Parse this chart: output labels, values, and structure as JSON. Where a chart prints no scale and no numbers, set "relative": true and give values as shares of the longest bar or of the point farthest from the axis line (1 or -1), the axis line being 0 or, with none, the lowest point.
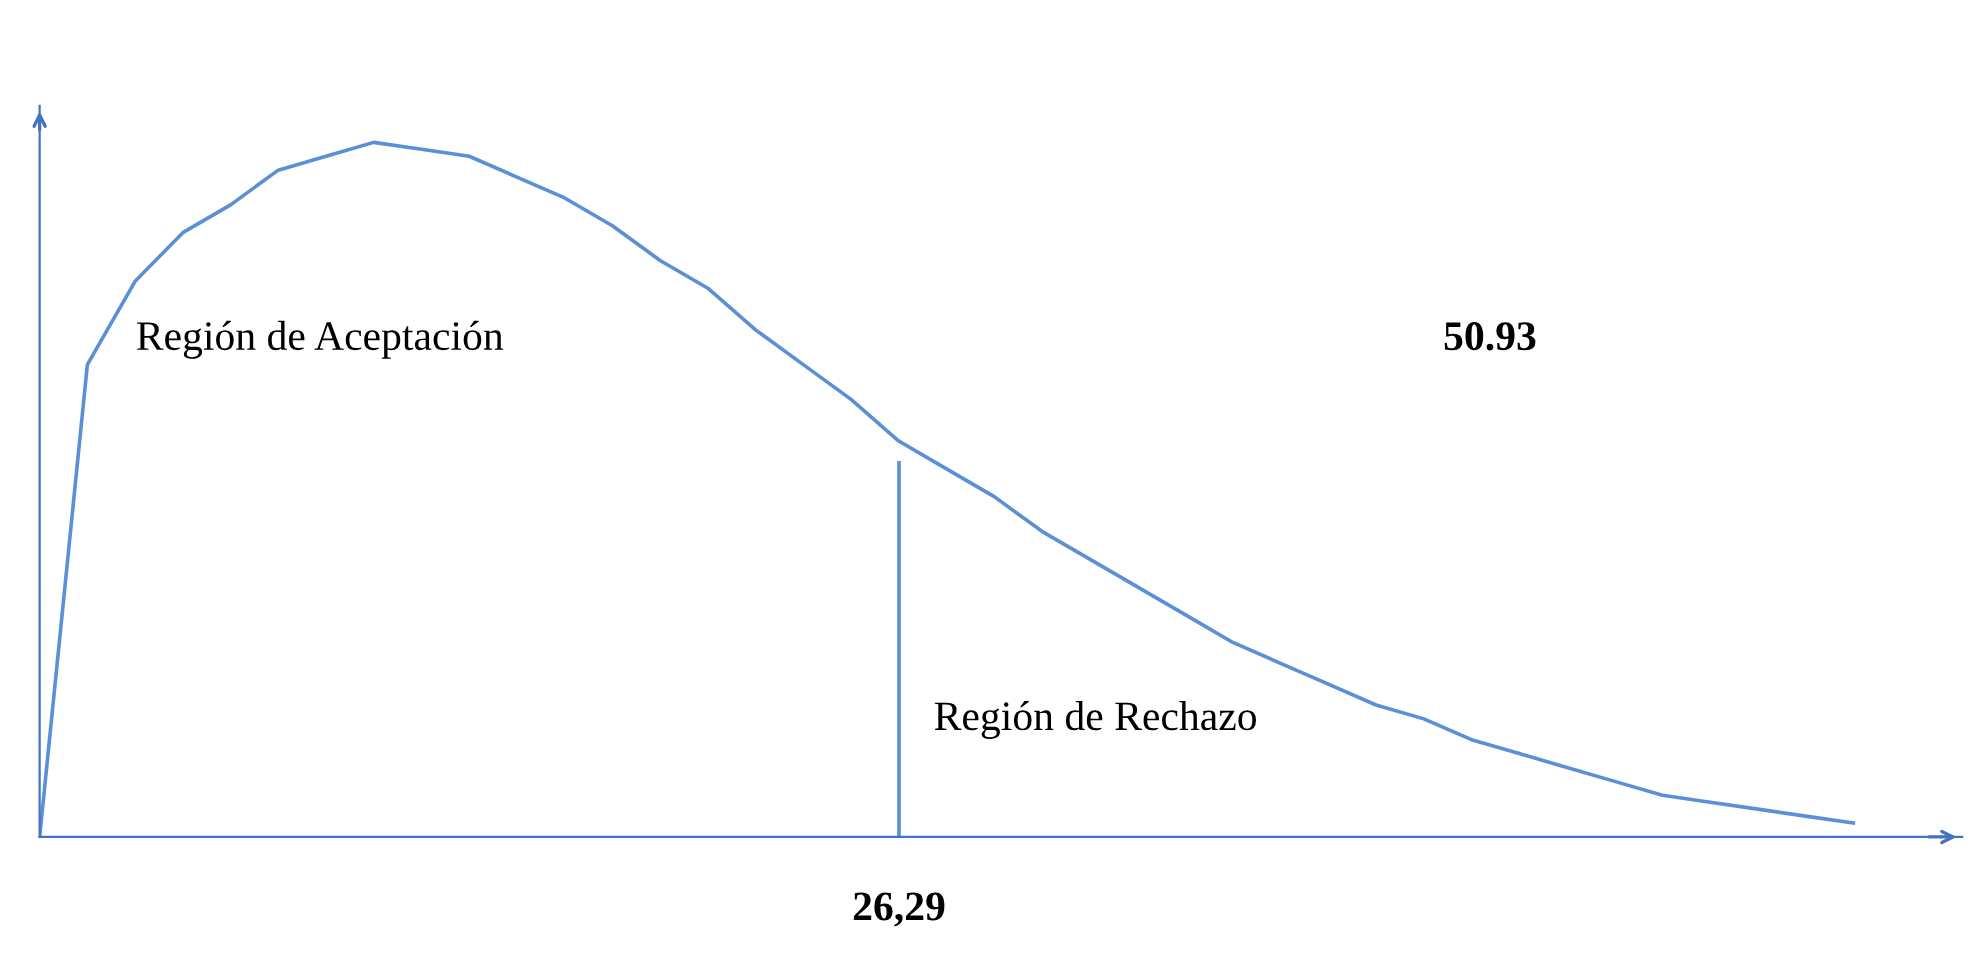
{
  "chart_data": {
    "type": "line",
    "relative": true,
    "color": "#5b8fd6",
    "categories": [
      null,
      null,
      null,
      null,
      null,
      null,
      null,
      null,
      null,
      null,
      null,
      null,
      null,
      null,
      null,
      null,
      null,
      null,
      null,
      null,
      null,
      null,
      null,
      null,
      null,
      null,
      null,
      null,
      null,
      null,
      null,
      null,
      null,
      null,
      null,
      null,
      null,
      null,
      null
    ],
    "values": [
      0,
      0.68,
      0.8,
      0.87,
      0.91,
      0.96,
      0.98,
      1.0,
      0.99,
      0.98,
      0.95,
      0.92,
      0.88,
      0.83,
      0.79,
      0.73,
      0.68,
      0.63,
      0.57,
      0.53,
      0.49,
      0.44,
      0.4,
      0.36,
      0.32,
      0.28,
      0.25,
      0.22,
      0.19,
      0.17,
      0.14,
      0.12,
      0.1,
      0.08,
      0.06,
      0.05,
      0.04,
      0.03,
      0.02
    ],
    "annotations": [
      "Región de Aceptación",
      "50.93",
      "Región de Rechazo",
      "26,29"
    ],
    "marker": "none",
    "line_style": "solid"
  }
}
